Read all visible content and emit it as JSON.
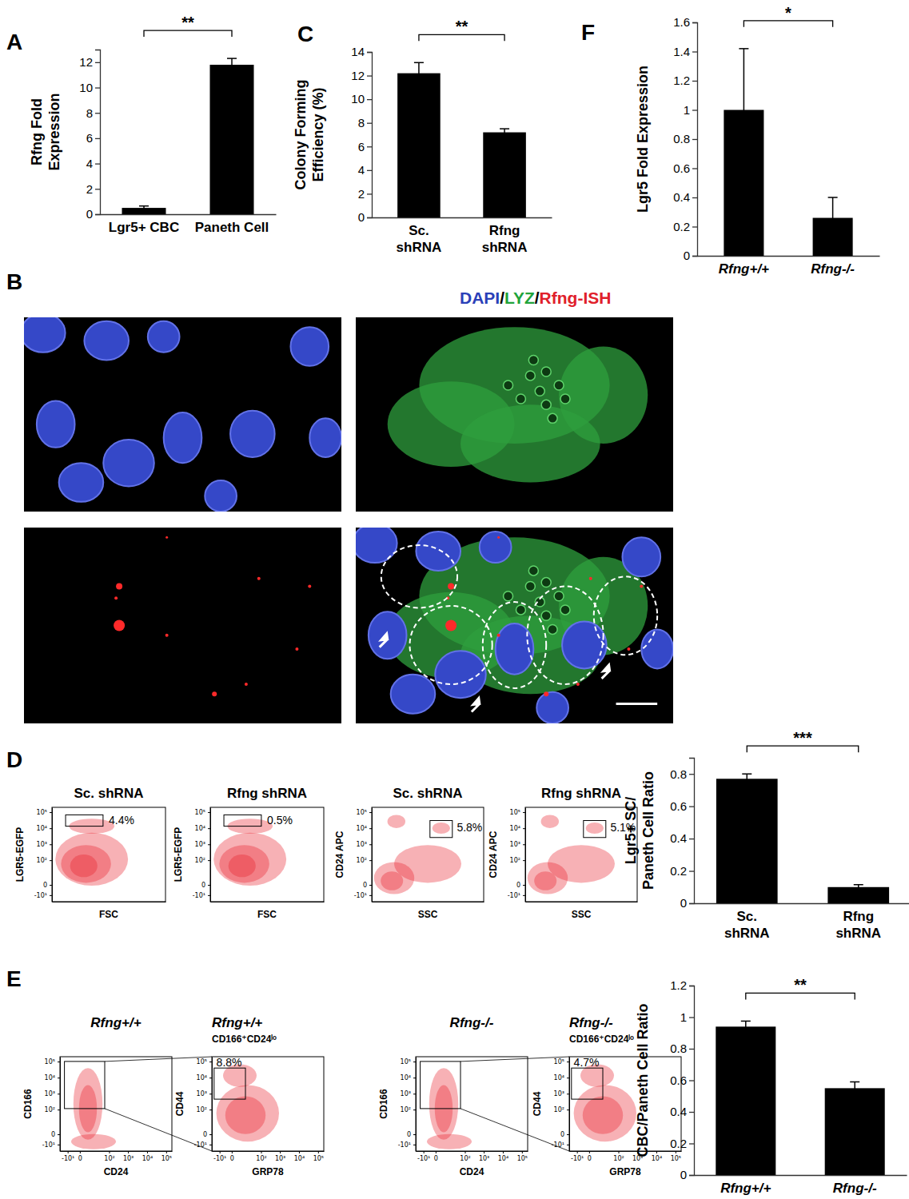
{
  "panel_labels": [
    "A",
    "B",
    "C",
    "D",
    "E",
    "F"
  ],
  "stain_legend": [
    {
      "text": "DAPI",
      "color": "#2b3fb8"
    },
    {
      "text": "/",
      "color": "#000000"
    },
    {
      "text": "LYZ",
      "color": "#21a33a"
    },
    {
      "text": "/",
      "color": "#000000"
    },
    {
      "text": "Rfng-ISH",
      "color": "#e0202a"
    }
  ],
  "chart_data": [
    {
      "type": "bar",
      "y_label": "Rfng Fold\nExpression",
      "categories": [
        "Lgr5+ CBC",
        "Paneth Cell"
      ],
      "values": [
        0.5,
        11.8
      ],
      "error": [
        0.15,
        0.5
      ],
      "ylim": [
        0,
        13
      ],
      "yticks": [
        0,
        2,
        4,
        6,
        8,
        10,
        12
      ],
      "color": "#000000",
      "annotation": "**"
    },
    {
      "type": "bar",
      "y_label": "Colony Forming\nEfficiency (%)",
      "categories": [
        "Sc.\nshRNA",
        "Rfng\nshRNA"
      ],
      "values": [
        12.2,
        7.2
      ],
      "error": [
        0.9,
        0.3
      ],
      "ylim": [
        0,
        14
      ],
      "yticks": [
        0,
        2,
        4,
        6,
        8,
        10,
        12,
        14
      ],
      "color": "#000000",
      "annotation": "**"
    },
    {
      "type": "bar",
      "y_label": "Lgr5 Fold Expression",
      "categories": [
        "Rfng+/+",
        "Rfng-/-"
      ],
      "values": [
        1,
        0.26
      ],
      "error": [
        0.42,
        0.14
      ],
      "ylim": [
        0,
        1.6
      ],
      "yticks": [
        0,
        0.2,
        0.4,
        0.6,
        0.8,
        1,
        1.2,
        1.4,
        1.6
      ],
      "color": "#000000",
      "annotation": "*"
    },
    {
      "type": "bar",
      "y_label": "Lgr5+ SC/\nPaneth Cell Ratio",
      "categories": [
        "Sc.\nshRNA",
        "Rfng\nshRNA"
      ],
      "values": [
        0.77,
        0.1
      ],
      "error": [
        0.03,
        0.015
      ],
      "ylim": [
        0,
        0.9
      ],
      "yticks": [
        0,
        0.2,
        0.4,
        0.6,
        0.8
      ],
      "color": "#000000",
      "annotation": "***"
    },
    {
      "type": "bar",
      "y_label": "CBC/Paneth Cell Ratio",
      "categories": [
        "Rfng+/+",
        "Rfng-/-"
      ],
      "values": [
        0.94,
        0.55
      ],
      "error": [
        0.035,
        0.04
      ],
      "ylim": [
        0,
        1.2
      ],
      "yticks": [
        0,
        0.2,
        0.4,
        0.6,
        0.8,
        1,
        1.2
      ],
      "color": "#000000",
      "annotation": "**"
    }
  ],
  "flow_plots": [
    {
      "title": "Sc. shRNA",
      "x_label": "FSC",
      "y_label": "LGR5-EGFP",
      "log": "y",
      "tick_labels": "y",
      "xlim": [
        0,
        250000
      ],
      "ylim": [
        -30,
        200000
      ],
      "yticks": [
        {
          "value": 100000,
          "label": "10⁵"
        },
        {
          "value": 10000,
          "label": "10⁴"
        },
        {
          "value": 1000,
          "label": "10³"
        },
        {
          "value": 100,
          "label": "10²"
        },
        0,
        {
          "value": -10,
          "label": "-10¹"
        }
      ],
      "gate_label": "4.4%"
    },
    {
      "title": "Rfng shRNA",
      "x_label": "FSC",
      "y_label": "LGR5-EGFP",
      "log": "y",
      "tick_labels": "y",
      "xlim": [
        0,
        250000
      ],
      "ylim": [
        -30,
        200000
      ],
      "yticks": [
        {
          "value": 100000,
          "label": "10⁵"
        },
        {
          "value": 10000,
          "label": "10⁴"
        },
        {
          "value": 1000,
          "label": "10³"
        },
        {
          "value": 100,
          "label": "10²"
        },
        0,
        {
          "value": -10,
          "label": "-10¹"
        }
      ],
      "gate_label": "0.5%"
    },
    {
      "title": "Sc. shRNA",
      "x_label": "SSC",
      "y_label": "CD24 APC",
      "log": "y",
      "tick_labels": "y",
      "xlim": [
        0,
        250000
      ],
      "ylim": [
        -30,
        200000
      ],
      "yticks": [
        {
          "value": 100000,
          "label": "10⁵"
        },
        {
          "value": 10000,
          "label": "10⁴"
        },
        {
          "value": 1000,
          "label": "10³"
        },
        {
          "value": 100,
          "label": "10²"
        },
        0,
        {
          "value": -10,
          "label": "-10¹"
        }
      ],
      "gate_label": "5.8%"
    },
    {
      "title": "Rfng shRNA",
      "x_label": "SSC",
      "y_label": "CD24 APC",
      "log": "y",
      "tick_labels": "y",
      "xlim": [
        0,
        250000
      ],
      "ylim": [
        -30,
        200000
      ],
      "yticks": [
        {
          "value": 100000,
          "label": "10⁵"
        },
        {
          "value": 10000,
          "label": "10⁴"
        },
        {
          "value": 1000,
          "label": "10³"
        },
        {
          "value": 100,
          "label": "10²"
        },
        0,
        {
          "value": -10,
          "label": "-10¹"
        }
      ],
      "gate_label": "5.1%"
    },
    {
      "title": "Rfng+/+",
      "x_label": "CD24",
      "y_label": "CD166",
      "log": true,
      "xlim": [
        -30,
        200000
      ],
      "ylim": [
        -30,
        200000
      ],
      "xticks": [
        {
          "value": -10,
          "label": "-10¹"
        },
        0,
        {
          "value": 100,
          "label": "10²"
        },
        {
          "value": 1000,
          "label": "10³"
        },
        {
          "value": 10000,
          "label": "10⁴"
        },
        {
          "value": 100000,
          "label": "10⁵"
        }
      ],
      "yticks": [
        {
          "value": 100000,
          "label": "10⁵"
        },
        {
          "value": 10000,
          "label": "10⁴"
        },
        {
          "value": 1000,
          "label": "10³"
        },
        {
          "value": 100,
          "label": "10²"
        },
        0,
        {
          "value": -10,
          "label": "-10¹"
        }
      ]
    },
    {
      "title": "Rfng+/+",
      "subtitle": "CD166⁺CD24ˡᵒ",
      "x_label": "GRP78",
      "y_label": "CD44",
      "log": true,
      "xlim": [
        -30,
        200000
      ],
      "ylim": [
        -30,
        200000
      ],
      "xticks": [
        {
          "value": -10,
          "label": "-10¹"
        },
        0,
        {
          "value": 100,
          "label": "10²"
        },
        {
          "value": 1000,
          "label": "10³"
        },
        {
          "value": 10000,
          "label": "10⁴"
        },
        {
          "value": 100000,
          "label": "10⁵"
        }
      ],
      "yticks": [
        {
          "value": 100000,
          "label": "10⁵"
        },
        {
          "value": 10000,
          "label": "10⁴"
        },
        {
          "value": 1000,
          "label": "10³"
        },
        {
          "value": 100,
          "label": "10²"
        },
        0,
        {
          "value": -10,
          "label": "-10¹"
        }
      ],
      "gate_label": "8.8%"
    },
    {
      "title": "Rfng-/-",
      "x_label": "CD24",
      "y_label": "CD166",
      "log": true,
      "xlim": [
        -30,
        200000
      ],
      "ylim": [
        -30,
        200000
      ],
      "xticks": [
        {
          "value": -10,
          "label": "-10¹"
        },
        0,
        {
          "value": 100,
          "label": "10²"
        },
        {
          "value": 1000,
          "label": "10³"
        },
        {
          "value": 10000,
          "label": "10⁴"
        },
        {
          "value": 100000,
          "label": "10⁵"
        }
      ],
      "yticks": [
        {
          "value": 100000,
          "label": "10⁵"
        },
        {
          "value": 10000,
          "label": "10⁴"
        },
        {
          "value": 1000,
          "label": "10³"
        },
        {
          "value": 100,
          "label": "10²"
        },
        0,
        {
          "value": -10,
          "label": "-10¹"
        }
      ]
    },
    {
      "title": "Rfng-/-",
      "subtitle": "CD166⁺CD24ˡᵒ",
      "x_label": "GRP78",
      "y_label": "CD44",
      "log": true,
      "xlim": [
        -30,
        200000
      ],
      "ylim": [
        -30,
        200000
      ],
      "xticks": [
        {
          "value": -10,
          "label": "-10¹"
        },
        0,
        {
          "value": 100,
          "label": "10²"
        },
        {
          "value": 1000,
          "label": "10³"
        },
        {
          "value": 10000,
          "label": "10⁴"
        },
        {
          "value": 100000,
          "label": "10⁵"
        }
      ],
      "yticks": [
        {
          "value": 100000,
          "label": "10⁵"
        },
        {
          "value": 10000,
          "label": "10⁴"
        },
        {
          "value": 1000,
          "label": "10³"
        },
        {
          "value": 100,
          "label": "10²"
        },
        0,
        {
          "value": -10,
          "label": "-10¹"
        }
      ],
      "gate_label": "4.7%"
    }
  ]
}
